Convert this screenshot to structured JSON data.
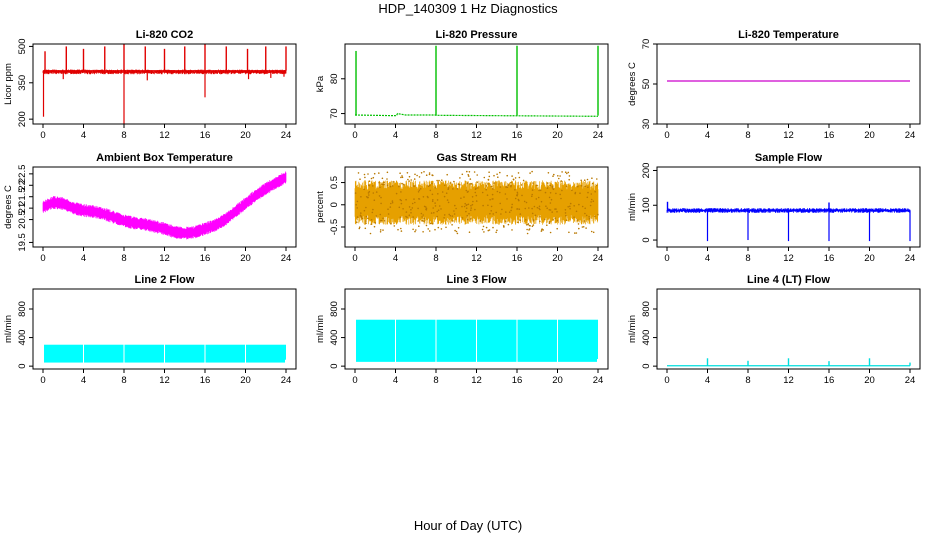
{
  "page": {
    "title": "HDP_140309  1 Hz Diagnostics",
    "xlabel": "Hour of Day (UTC)"
  },
  "chart_data": [
    {
      "type": "line",
      "title": "Li-820 CO2",
      "ylabel": "Licor ppm",
      "color": "#e00000",
      "xlim": [
        0,
        24
      ],
      "x_ticks": [
        0,
        4,
        8,
        12,
        16,
        20,
        24
      ],
      "ylim": [
        180,
        510
      ],
      "y_ticks": [
        200,
        350,
        500
      ],
      "baseline": 400,
      "band": [
        385,
        405
      ],
      "spikes_up": [
        [
          0.2,
          480
        ],
        [
          2.3,
          500
        ],
        [
          4.0,
          490
        ],
        [
          6.1,
          500
        ],
        [
          8.0,
          510
        ],
        [
          10.1,
          500
        ],
        [
          12.0,
          490
        ],
        [
          14.0,
          500
        ],
        [
          16.0,
          510
        ],
        [
          18.1,
          500
        ],
        [
          20.2,
          490
        ],
        [
          22.0,
          500
        ],
        [
          24.0,
          500
        ]
      ],
      "spikes_down": [
        [
          0.05,
          210
        ],
        [
          8.0,
          180
        ],
        [
          16.0,
          290
        ],
        [
          2.0,
          365
        ],
        [
          10.3,
          360
        ],
        [
          20.3,
          365
        ],
        [
          22.5,
          370
        ],
        [
          23.8,
          375
        ]
      ]
    },
    {
      "type": "line",
      "title": "Li-820 Pressure",
      "ylabel": "kPa",
      "color": "#00c000",
      "xlim": [
        0,
        24
      ],
      "x_ticks": [
        0,
        4,
        8,
        12,
        16,
        20,
        24
      ],
      "ylim": [
        67,
        90
      ],
      "y_ticks": [
        70,
        80
      ],
      "baseline": 69.4,
      "spikes_up": [
        [
          0.1,
          88
        ],
        [
          8.0,
          89.5
        ],
        [
          16.0,
          89.5
        ],
        [
          24.0,
          89.5
        ]
      ],
      "steps": [
        [
          0,
          69.6
        ],
        [
          4.1,
          69.4
        ],
        [
          4.2,
          70.0
        ],
        [
          5.0,
          69.6
        ],
        [
          7.9,
          69.6
        ],
        [
          8.1,
          69.5
        ],
        [
          24,
          69.2
        ]
      ]
    },
    {
      "type": "line",
      "title": "Li-820 Temperature",
      "ylabel": "degrees C",
      "color": "#cc00cc",
      "xlim": [
        0,
        24
      ],
      "x_ticks": [
        0,
        4,
        8,
        12,
        16,
        20,
        24
      ],
      "ylim": [
        30,
        70
      ],
      "y_ticks": [
        30,
        50,
        70
      ],
      "baseline": 51.5
    },
    {
      "type": "line",
      "title": "Ambient Box Temperature",
      "ylabel": "degrees C",
      "color": "#ff00ff",
      "xlim": [
        0,
        24
      ],
      "x_ticks": [
        0,
        4,
        8,
        12,
        16,
        20,
        24
      ],
      "ylim": [
        19.3,
        22.8
      ],
      "y_ticks": [
        19.5,
        20.5,
        21.0,
        21.5,
        22.0,
        22.5
      ],
      "center": [
        [
          0,
          21.05
        ],
        [
          1,
          21.25
        ],
        [
          2,
          21.2
        ],
        [
          3,
          21.0
        ],
        [
          4,
          20.9
        ],
        [
          5,
          20.85
        ],
        [
          6,
          20.75
        ],
        [
          7,
          20.6
        ],
        [
          8,
          20.45
        ],
        [
          9,
          20.35
        ],
        [
          10,
          20.3
        ],
        [
          11,
          20.2
        ],
        [
          12,
          20.1
        ],
        [
          13,
          19.95
        ],
        [
          14,
          19.9
        ],
        [
          15,
          19.95
        ],
        [
          16,
          20.1
        ],
        [
          17,
          20.25
        ],
        [
          18,
          20.5
        ],
        [
          19,
          20.85
        ],
        [
          20,
          21.2
        ],
        [
          21,
          21.55
        ],
        [
          22,
          21.85
        ],
        [
          23,
          22.1
        ],
        [
          24,
          22.35
        ]
      ],
      "half_width": 0.28
    },
    {
      "type": "line",
      "title": "Gas Stream RH",
      "ylabel": "percent",
      "color": "#e6a000",
      "xlim": [
        0,
        24
      ],
      "x_ticks": [
        0,
        4,
        8,
        12,
        16,
        20,
        24
      ],
      "ylim": [
        -0.95,
        0.85
      ],
      "y_ticks": [
        -0.5,
        0.0,
        0.5
      ],
      "center": [
        [
          0,
          0.05
        ],
        [
          24,
          0.05
        ]
      ],
      "half_width": 0.5
    },
    {
      "type": "line",
      "title": "Sample Flow",
      "ylabel": "ml/min",
      "color": "#0000ff",
      "xlim": [
        0,
        24
      ],
      "x_ticks": [
        0,
        4,
        8,
        12,
        16,
        20,
        24
      ],
      "ylim": [
        -20,
        210
      ],
      "y_ticks": [
        0,
        100,
        200
      ],
      "baseline": 85,
      "band": [
        78,
        92
      ],
      "spikes_down": [
        [
          4.0,
          -3
        ],
        [
          8.0,
          0
        ],
        [
          12.0,
          -3
        ],
        [
          16.0,
          -3
        ],
        [
          20.0,
          -3
        ],
        [
          24.0,
          -3
        ]
      ],
      "spikes_up": [
        [
          0.05,
          110
        ],
        [
          16.0,
          108
        ]
      ]
    },
    {
      "type": "area",
      "title": "Line 2 Flow",
      "ylabel": "ml/min",
      "color": "#00ffff",
      "xlim": [
        0,
        24
      ],
      "x_ticks": [
        0,
        4,
        8,
        12,
        16,
        20,
        24
      ],
      "ylim": [
        -40,
        1080
      ],
      "y_ticks": [
        0,
        400,
        800
      ],
      "band": [
        50,
        300
      ],
      "gaps": [
        4.0,
        8.0,
        12.0,
        16.0,
        20.0
      ]
    },
    {
      "type": "area",
      "title": "Line 3 Flow",
      "ylabel": "ml/min",
      "color": "#00ffff",
      "xlim": [
        0,
        24
      ],
      "x_ticks": [
        0,
        4,
        8,
        12,
        16,
        20,
        24
      ],
      "ylim": [
        -40,
        1080
      ],
      "y_ticks": [
        0,
        400,
        800
      ],
      "band": [
        60,
        650
      ],
      "gaps": [
        4.0,
        8.0,
        12.0,
        16.0,
        20.0
      ]
    },
    {
      "type": "line",
      "title": "Line 4 (LT) Flow",
      "ylabel": "ml/min",
      "color": "#00dddd",
      "xlim": [
        0,
        24
      ],
      "x_ticks": [
        0,
        4,
        8,
        12,
        16,
        20,
        24
      ],
      "ylim": [
        -40,
        1080
      ],
      "y_ticks": [
        0,
        400,
        800
      ],
      "baseline": 5,
      "spikes_up": [
        [
          4.0,
          110
        ],
        [
          8.0,
          75
        ],
        [
          12.0,
          110
        ],
        [
          16.0,
          70
        ],
        [
          20.0,
          110
        ],
        [
          24.0,
          50
        ]
      ]
    }
  ]
}
